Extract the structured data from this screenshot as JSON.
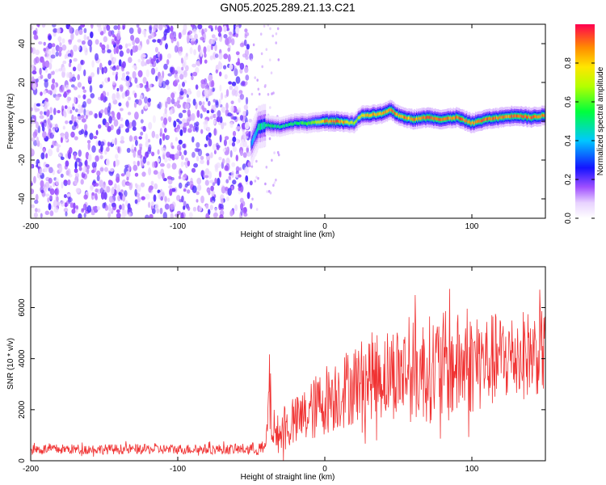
{
  "title": "GN05.2025.289.21.13.C21",
  "chart_data": [
    {
      "type": "heatmap",
      "name": "spectrogram",
      "xlabel": "Height of straight line (km)",
      "ylabel": "Frequency (Hz)",
      "xlim": [
        -200,
        150
      ],
      "ylim": [
        -50,
        50
      ],
      "x_ticks": [
        -200,
        -100,
        0,
        100
      ],
      "y_ticks": [
        -40,
        -20,
        0,
        20,
        40
      ],
      "colorbar": {
        "label": "Normalized spectral amplitude",
        "range": [
          0,
          1
        ],
        "ticks": [
          "0.0",
          "0.2",
          "0.4",
          "0.6",
          "0.8"
        ]
      },
      "regions": [
        {
          "from_km": -200,
          "to_km": -50,
          "description": "broadband noise",
          "amplitude": 0.15
        },
        {
          "from_km": -50,
          "to_km": 150,
          "description": "narrowband signal near 0 Hz",
          "amplitude": 0.8
        }
      ],
      "signal_track": {
        "x_km": [
          -50,
          -45,
          -40,
          -30,
          -20,
          -10,
          0,
          10,
          20,
          25,
          30,
          40,
          45,
          50,
          60,
          70,
          80,
          90,
          100,
          110,
          120,
          130,
          140,
          150
        ],
        "freq_hz": [
          -12,
          -3,
          -2,
          -3,
          -1,
          -1,
          0,
          0,
          -1,
          3,
          3,
          4,
          6,
          3,
          1,
          2,
          1,
          2,
          -1,
          1,
          2,
          3,
          2,
          3
        ],
        "peak_amplitude": [
          0.35,
          0.5,
          0.55,
          0.5,
          0.55,
          0.6,
          0.9,
          0.95,
          0.7,
          0.8,
          0.85,
          0.9,
          0.95,
          0.9,
          0.9,
          0.95,
          0.9,
          0.95,
          0.9,
          0.95,
          0.9,
          0.95,
          0.95,
          0.9
        ]
      }
    },
    {
      "type": "line",
      "name": "snr",
      "xlabel": "Height of straight line (km)",
      "ylabel": "SNR (10 * v/v)",
      "xlim": [
        -200,
        150
      ],
      "ylim": [
        0,
        7600
      ],
      "x_ticks": [
        -200,
        -100,
        0,
        100
      ],
      "y_ticks": [
        0,
        2000,
        4000,
        6000
      ],
      "color": "#f03232",
      "envelope": {
        "x_km": [
          -200,
          -150,
          -100,
          -60,
          -40,
          -38,
          -35,
          -30,
          -20,
          -10,
          0,
          10,
          20,
          30,
          40,
          50,
          60,
          70,
          80,
          90,
          100,
          110,
          120,
          130,
          140,
          150
        ],
        "mean": [
          450,
          450,
          450,
          450,
          480,
          2800,
          1000,
          1100,
          1500,
          1900,
          2400,
          2700,
          3000,
          3300,
          3400,
          3500,
          3500,
          3600,
          3600,
          3700,
          3800,
          3900,
          4000,
          4100,
          4200,
          4300
        ],
        "spread": [
          200,
          200,
          200,
          200,
          300,
          1800,
          700,
          800,
          1000,
          1200,
          1400,
          1500,
          1600,
          1700,
          1800,
          1900,
          2000,
          2100,
          2300,
          2100,
          2000,
          1900,
          1800,
          1800,
          1700,
          1700
        ]
      }
    }
  ]
}
